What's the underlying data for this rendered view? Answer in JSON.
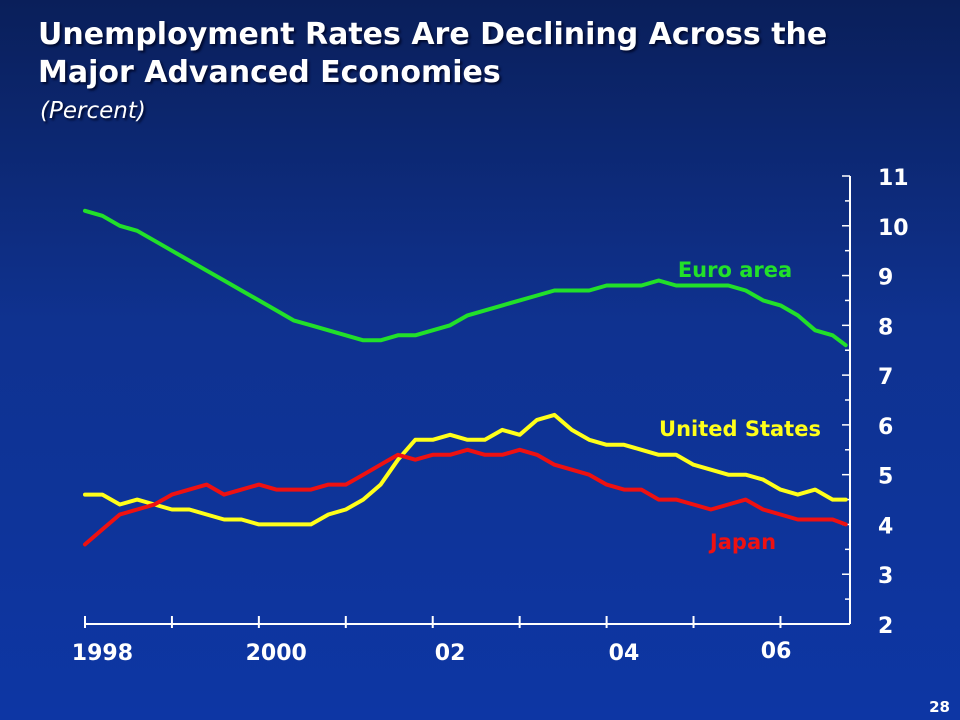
{
  "slide": {
    "title": "Unemployment Rates Are Declining Across the Major Advanced Economies",
    "subtitle": "(Percent)",
    "page_number": "28"
  },
  "colors": {
    "background": "#0f3290",
    "euro_area": "#22e02a",
    "united_states": "#ffff1a",
    "japan": "#ee1111",
    "axis": "#ffffff"
  },
  "chart_data": {
    "type": "line",
    "title": "Unemployment Rates Are Declining Across the Major Advanced Economies",
    "ylabel": "(Percent)",
    "xlabel": "",
    "ylim": [
      2,
      11
    ],
    "xlim": [
      1998,
      2006.8
    ],
    "y_axis_side": "right",
    "y_ticks": [
      "2",
      "3",
      "4",
      "5",
      "6",
      "7",
      "8",
      "9",
      "10",
      "11"
    ],
    "x_ticks": [
      "1998",
      "2000",
      "02",
      "04",
      "06"
    ],
    "grid": false,
    "legend": "inline labels",
    "series": [
      {
        "name": "Euro area",
        "x": [
          1998.0,
          1998.2,
          1998.4,
          1998.6,
          1998.8,
          1999.0,
          1999.2,
          1999.4,
          1999.6,
          1999.8,
          2000.0,
          2000.2,
          2000.4,
          2000.6,
          2000.8,
          2001.0,
          2001.2,
          2001.4,
          2001.6,
          2001.8,
          2002.0,
          2002.2,
          2002.4,
          2002.6,
          2002.8,
          2003.0,
          2003.2,
          2003.4,
          2003.6,
          2003.8,
          2004.0,
          2004.2,
          2004.4,
          2004.6,
          2004.8,
          2005.0,
          2005.2,
          2005.4,
          2005.6,
          2005.8,
          2006.0,
          2006.2,
          2006.4,
          2006.6,
          2006.75
        ],
        "y": [
          10.3,
          10.2,
          10.0,
          9.9,
          9.7,
          9.5,
          9.3,
          9.1,
          8.9,
          8.7,
          8.5,
          8.3,
          8.1,
          8.0,
          7.9,
          7.8,
          7.7,
          7.7,
          7.8,
          7.8,
          7.9,
          8.0,
          8.2,
          8.3,
          8.4,
          8.5,
          8.6,
          8.7,
          8.7,
          8.7,
          8.8,
          8.8,
          8.8,
          8.9,
          8.8,
          8.8,
          8.8,
          8.8,
          8.7,
          8.5,
          8.4,
          8.2,
          7.9,
          7.8,
          7.6
        ]
      },
      {
        "name": "United States",
        "x": [
          1998.0,
          1998.2,
          1998.4,
          1998.6,
          1998.8,
          1999.0,
          1999.2,
          1999.4,
          1999.6,
          1999.8,
          2000.0,
          2000.2,
          2000.4,
          2000.6,
          2000.8,
          2001.0,
          2001.2,
          2001.4,
          2001.6,
          2001.8,
          2002.0,
          2002.2,
          2002.4,
          2002.6,
          2002.8,
          2003.0,
          2003.2,
          2003.4,
          2003.6,
          2003.8,
          2004.0,
          2004.2,
          2004.4,
          2004.6,
          2004.8,
          2005.0,
          2005.2,
          2005.4,
          2005.6,
          2005.8,
          2006.0,
          2006.2,
          2006.4,
          2006.6,
          2006.75
        ],
        "y": [
          4.6,
          4.6,
          4.4,
          4.5,
          4.4,
          4.3,
          4.3,
          4.2,
          4.1,
          4.1,
          4.0,
          4.0,
          4.0,
          4.0,
          4.2,
          4.3,
          4.5,
          4.8,
          5.3,
          5.7,
          5.7,
          5.8,
          5.7,
          5.7,
          5.9,
          5.8,
          6.1,
          6.2,
          5.9,
          5.7,
          5.6,
          5.6,
          5.5,
          5.4,
          5.4,
          5.2,
          5.1,
          5.0,
          5.0,
          4.9,
          4.7,
          4.6,
          4.7,
          4.5,
          4.5
        ]
      },
      {
        "name": "Japan",
        "x": [
          1998.0,
          1998.2,
          1998.4,
          1998.6,
          1998.8,
          1999.0,
          1999.2,
          1999.4,
          1999.6,
          1999.8,
          2000.0,
          2000.2,
          2000.4,
          2000.6,
          2000.8,
          2001.0,
          2001.2,
          2001.4,
          2001.6,
          2001.8,
          2002.0,
          2002.2,
          2002.4,
          2002.6,
          2002.8,
          2003.0,
          2003.2,
          2003.4,
          2003.6,
          2003.8,
          2004.0,
          2004.2,
          2004.4,
          2004.6,
          2004.8,
          2005.0,
          2005.2,
          2005.4,
          2005.6,
          2005.8,
          2006.0,
          2006.2,
          2006.4,
          2006.6,
          2006.75
        ],
        "y": [
          3.6,
          3.9,
          4.2,
          4.3,
          4.4,
          4.6,
          4.7,
          4.8,
          4.6,
          4.7,
          4.8,
          4.7,
          4.7,
          4.7,
          4.8,
          4.8,
          5.0,
          5.2,
          5.4,
          5.3,
          5.4,
          5.4,
          5.5,
          5.4,
          5.4,
          5.5,
          5.4,
          5.2,
          5.1,
          5.0,
          4.8,
          4.7,
          4.7,
          4.5,
          4.5,
          4.4,
          4.3,
          4.4,
          4.5,
          4.3,
          4.2,
          4.1,
          4.1,
          4.1,
          4.0
        ]
      }
    ]
  }
}
